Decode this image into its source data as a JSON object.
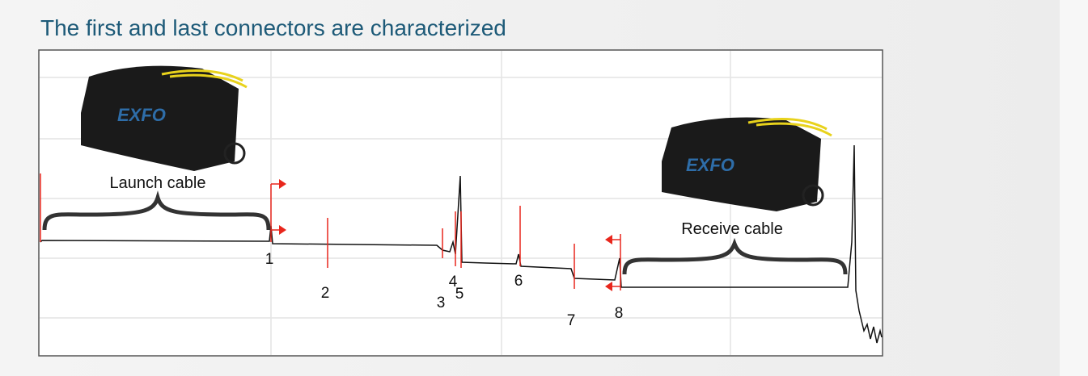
{
  "title": "The first and last connectors are characterized",
  "launch_label": "Launch cable",
  "receive_label": "Receive cable",
  "bags": [
    {
      "logo": "EXFO"
    },
    {
      "logo": "EXFO"
    }
  ],
  "events": [
    "1",
    "2",
    "3",
    "4",
    "5",
    "6",
    "7",
    "8"
  ]
}
